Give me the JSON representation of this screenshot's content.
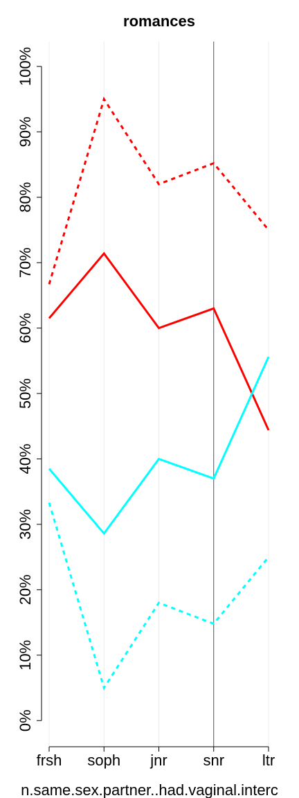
{
  "chart_data": {
    "type": "line",
    "title": "romances",
    "x_label": "n.same.sex.partner..had.vaginal.interc",
    "categories": [
      "frsh",
      "soph",
      "jnr",
      "snr",
      "ltr"
    ],
    "series": [
      {
        "color": "#ff0000",
        "dashed": true,
        "values": [
          66.7,
          95,
          82,
          85.2,
          75
        ]
      },
      {
        "color": "#ff0000",
        "dashed": false,
        "values": [
          61.5,
          71.4,
          60,
          63,
          44.4
        ]
      },
      {
        "color": "#00ffff",
        "dashed": false,
        "values": [
          38.5,
          28.6,
          40,
          37,
          55.6
        ]
      },
      {
        "color": "#00ffff",
        "dashed": true,
        "values": [
          33.3,
          5,
          18,
          14.8,
          25
        ]
      }
    ],
    "ylim": [
      -4,
      103.8
    ],
    "yticks": [
      {
        "value": 0,
        "label": "0%"
      },
      {
        "value": 10,
        "label": "10%"
      },
      {
        "value": 20,
        "label": "20%"
      },
      {
        "value": 30,
        "label": "30%"
      },
      {
        "value": 40,
        "label": "40%"
      },
      {
        "value": 50,
        "label": "50%"
      },
      {
        "value": 60,
        "label": "60%"
      },
      {
        "value": 70,
        "label": "70%"
      },
      {
        "value": 80,
        "label": "80%"
      },
      {
        "value": 90,
        "label": "90%"
      },
      {
        "value": 100,
        "label": "100%"
      }
    ],
    "grid": true
  }
}
